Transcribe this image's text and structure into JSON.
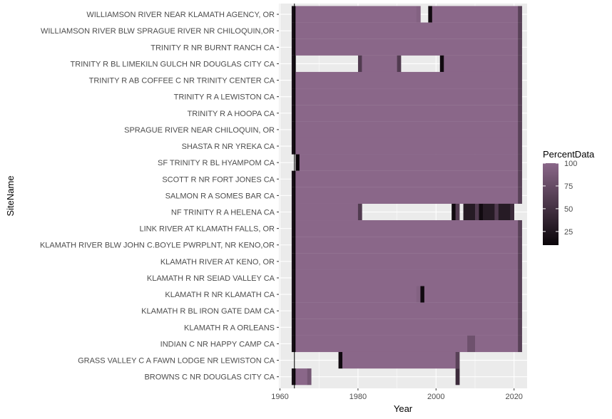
{
  "chart_data": {
    "type": "heatmap",
    "xlabel": "Year",
    "ylabel": "SiteName",
    "xlim": [
      1960,
      2025
    ],
    "x_ticks": [
      1960,
      1980,
      2000,
      2020
    ],
    "x_tick_labels": [
      "1960",
      "1980",
      "2000",
      "2020"
    ],
    "legend_title": "PercentData",
    "legend_placement": "right",
    "legend_ticks": [
      100,
      75,
      50,
      25
    ],
    "legend_tick_labels": [
      "100",
      "75",
      "50",
      "25"
    ],
    "color_range": [
      10,
      100
    ],
    "colors": {
      "low": "#0a0509",
      "high": "#8a6789",
      "panel": "#ebebeb",
      "grid": "#ffffff"
    },
    "grid": true,
    "reference_line_year": 1963.7,
    "sites": [
      "WILLIAMSON RIVER NEAR KLAMATH AGENCY, OR",
      "WILLIAMSON RIVER BLW SPRAGUE RIVER NR CHILOQUIN,OR",
      "TRINITY R NR BURNT RANCH CA",
      "TRINITY R BL LIMEKILN GULCH NR DOUGLAS CITY CA",
      "TRINITY R AB COFFEE C NR TRINITY CENTER CA",
      "TRINITY R A LEWISTON CA",
      "TRINITY R A HOOPA CA",
      "SPRAGUE RIVER NEAR CHILOQUIN, OR",
      "SHASTA R NR YREKA CA",
      "SF TRINITY R BL HYAMPOM CA",
      "SCOTT R NR FORT JONES CA",
      "SALMON R A SOMES BAR CA",
      "NF TRINITY R A HELENA CA",
      "LINK RIVER AT KLAMATH FALLS, OR",
      "KLAMATH RIVER BLW JOHN C.BOYLE PWRPLNT, NR KENO,OR",
      "KLAMATH RIVER AT KENO, OR",
      "KLAMATH R NR SEIAD VALLEY CA",
      "KLAMATH R NR KLAMATH CA",
      "KLAMATH R BL IRON GATE DAM CA",
      "KLAMATH R A ORLEANS",
      "INDIAN C NR HAPPY CAMP CA",
      "GRASS VALLEY C A FAWN LODGE NR LEWISTON CA",
      "BROWNS C NR DOUGLAS CITY CA"
    ],
    "segments": [
      {
        "site": "WILLIAMSON RIVER NEAR KLAMATH AGENCY, OR",
        "start": 1963,
        "end": 1964,
        "percent": 20
      },
      {
        "site": "WILLIAMSON RIVER NEAR KLAMATH AGENCY, OR",
        "start": 1964,
        "end": 1995,
        "percent": 100
      },
      {
        "site": "WILLIAMSON RIVER NEAR KLAMATH AGENCY, OR",
        "start": 1995,
        "end": 1996,
        "percent": 95
      },
      {
        "site": "WILLIAMSON RIVER NEAR KLAMATH AGENCY, OR",
        "start": 1998,
        "end": 1999,
        "percent": 15
      },
      {
        "site": "WILLIAMSON RIVER NEAR KLAMATH AGENCY, OR",
        "start": 1999,
        "end": 2021,
        "percent": 100
      },
      {
        "site": "WILLIAMSON RIVER NEAR KLAMATH AGENCY, OR",
        "start": 2021,
        "end": 2022,
        "percent": 65
      },
      {
        "site": "WILLIAMSON RIVER BLW SPRAGUE RIVER NR CHILOQUIN,OR",
        "start": 1963,
        "end": 1964,
        "percent": 20
      },
      {
        "site": "WILLIAMSON RIVER BLW SPRAGUE RIVER NR CHILOQUIN,OR",
        "start": 1964,
        "end": 2021,
        "percent": 100
      },
      {
        "site": "WILLIAMSON RIVER BLW SPRAGUE RIVER NR CHILOQUIN,OR",
        "start": 2021,
        "end": 2022,
        "percent": 65
      },
      {
        "site": "TRINITY R NR BURNT RANCH CA",
        "start": 1963,
        "end": 1964,
        "percent": 20
      },
      {
        "site": "TRINITY R NR BURNT RANCH CA",
        "start": 1964,
        "end": 2021,
        "percent": 100
      },
      {
        "site": "TRINITY R NR BURNT RANCH CA",
        "start": 2021,
        "end": 2022,
        "percent": 65
      },
      {
        "site": "TRINITY R BL LIMEKILN GULCH NR DOUGLAS CITY CA",
        "start": 1963,
        "end": 1964,
        "percent": 20
      },
      {
        "site": "TRINITY R BL LIMEKILN GULCH NR DOUGLAS CITY CA",
        "start": 1980,
        "end": 1981,
        "percent": 60
      },
      {
        "site": "TRINITY R BL LIMEKILN GULCH NR DOUGLAS CITY CA",
        "start": 1981,
        "end": 1990,
        "percent": 100
      },
      {
        "site": "TRINITY R BL LIMEKILN GULCH NR DOUGLAS CITY CA",
        "start": 1990,
        "end": 1991,
        "percent": 60
      },
      {
        "site": "TRINITY R BL LIMEKILN GULCH NR DOUGLAS CITY CA",
        "start": 2001,
        "end": 2002,
        "percent": 15
      },
      {
        "site": "TRINITY R BL LIMEKILN GULCH NR DOUGLAS CITY CA",
        "start": 2002,
        "end": 2021,
        "percent": 100
      },
      {
        "site": "TRINITY R BL LIMEKILN GULCH NR DOUGLAS CITY CA",
        "start": 2021,
        "end": 2022,
        "percent": 65
      },
      {
        "site": "TRINITY R AB COFFEE C NR TRINITY CENTER CA",
        "start": 1963,
        "end": 1964,
        "percent": 20
      },
      {
        "site": "TRINITY R AB COFFEE C NR TRINITY CENTER CA",
        "start": 1964,
        "end": 2021,
        "percent": 100
      },
      {
        "site": "TRINITY R AB COFFEE C NR TRINITY CENTER CA",
        "start": 2021,
        "end": 2022,
        "percent": 65
      },
      {
        "site": "TRINITY R A LEWISTON CA",
        "start": 1963,
        "end": 1964,
        "percent": 20
      },
      {
        "site": "TRINITY R A LEWISTON CA",
        "start": 1964,
        "end": 2021,
        "percent": 100
      },
      {
        "site": "TRINITY R A LEWISTON CA",
        "start": 2021,
        "end": 2022,
        "percent": 65
      },
      {
        "site": "TRINITY R A HOOPA CA",
        "start": 1963,
        "end": 1964,
        "percent": 20
      },
      {
        "site": "TRINITY R A HOOPA CA",
        "start": 1964,
        "end": 2021,
        "percent": 100
      },
      {
        "site": "TRINITY R A HOOPA CA",
        "start": 2021,
        "end": 2022,
        "percent": 65
      },
      {
        "site": "SPRAGUE RIVER NEAR CHILOQUIN, OR",
        "start": 1963,
        "end": 1964,
        "percent": 20
      },
      {
        "site": "SPRAGUE RIVER NEAR CHILOQUIN, OR",
        "start": 1964,
        "end": 2021,
        "percent": 100
      },
      {
        "site": "SPRAGUE RIVER NEAR CHILOQUIN, OR",
        "start": 2021,
        "end": 2022,
        "percent": 65
      },
      {
        "site": "SHASTA R NR YREKA CA",
        "start": 1963,
        "end": 1964,
        "percent": 20
      },
      {
        "site": "SHASTA R NR YREKA CA",
        "start": 1964,
        "end": 2021,
        "percent": 100
      },
      {
        "site": "SHASTA R NR YREKA CA",
        "start": 2021,
        "end": 2022,
        "percent": 65
      },
      {
        "site": "SF TRINITY R BL HYAMPOM CA",
        "start": 1964,
        "end": 1965,
        "percent": 10
      },
      {
        "site": "SF TRINITY R BL HYAMPOM CA",
        "start": 1965,
        "end": 2021,
        "percent": 100
      },
      {
        "site": "SF TRINITY R BL HYAMPOM CA",
        "start": 2021,
        "end": 2022,
        "percent": 65
      },
      {
        "site": "SCOTT R NR FORT JONES CA",
        "start": 1963,
        "end": 1964,
        "percent": 20
      },
      {
        "site": "SCOTT R NR FORT JONES CA",
        "start": 1964,
        "end": 2021,
        "percent": 100
      },
      {
        "site": "SCOTT R NR FORT JONES CA",
        "start": 2021,
        "end": 2022,
        "percent": 65
      },
      {
        "site": "SALMON R A SOMES BAR CA",
        "start": 1963,
        "end": 1964,
        "percent": 20
      },
      {
        "site": "SALMON R A SOMES BAR CA",
        "start": 1964,
        "end": 2021,
        "percent": 100
      },
      {
        "site": "SALMON R A SOMES BAR CA",
        "start": 2021,
        "end": 2022,
        "percent": 65
      },
      {
        "site": "NF TRINITY R A HELENA CA",
        "start": 1963,
        "end": 1964,
        "percent": 20
      },
      {
        "site": "NF TRINITY R A HELENA CA",
        "start": 1964,
        "end": 1980,
        "percent": 100
      },
      {
        "site": "NF TRINITY R A HELENA CA",
        "start": 1980,
        "end": 1981,
        "percent": 60
      },
      {
        "site": "NF TRINITY R A HELENA CA",
        "start": 2004,
        "end": 2005,
        "percent": 15
      },
      {
        "site": "NF TRINITY R A HELENA CA",
        "start": 2005,
        "end": 2006,
        "percent": 60
      },
      {
        "site": "NF TRINITY R A HELENA CA",
        "start": 2007,
        "end": 2010,
        "percent": 30
      },
      {
        "site": "NF TRINITY R A HELENA CA",
        "start": 2010,
        "end": 2011,
        "percent": 60
      },
      {
        "site": "NF TRINITY R A HELENA CA",
        "start": 2011,
        "end": 2012,
        "percent": 15
      },
      {
        "site": "NF TRINITY R A HELENA CA",
        "start": 2012,
        "end": 2015,
        "percent": 30
      },
      {
        "site": "NF TRINITY R A HELENA CA",
        "start": 2015,
        "end": 2016,
        "percent": 60
      },
      {
        "site": "NF TRINITY R A HELENA CA",
        "start": 2016,
        "end": 2019,
        "percent": 30
      },
      {
        "site": "NF TRINITY R A HELENA CA",
        "start": 2019,
        "end": 2020,
        "percent": 45
      },
      {
        "site": "LINK RIVER AT KLAMATH FALLS, OR",
        "start": 1963,
        "end": 1964,
        "percent": 20
      },
      {
        "site": "LINK RIVER AT KLAMATH FALLS, OR",
        "start": 1964,
        "end": 2021,
        "percent": 100
      },
      {
        "site": "LINK RIVER AT KLAMATH FALLS, OR",
        "start": 2021,
        "end": 2022,
        "percent": 65
      },
      {
        "site": "KLAMATH RIVER BLW JOHN C.BOYLE PWRPLNT, NR KENO,OR",
        "start": 1963,
        "end": 1964,
        "percent": 20
      },
      {
        "site": "KLAMATH RIVER BLW JOHN C.BOYLE PWRPLNT, NR KENO,OR",
        "start": 1964,
        "end": 2021,
        "percent": 100
      },
      {
        "site": "KLAMATH RIVER BLW JOHN C.BOYLE PWRPLNT, NR KENO,OR",
        "start": 2021,
        "end": 2022,
        "percent": 65
      },
      {
        "site": "KLAMATH RIVER AT KENO, OR",
        "start": 1963,
        "end": 1964,
        "percent": 20
      },
      {
        "site": "KLAMATH RIVER AT KENO, OR",
        "start": 1964,
        "end": 2021,
        "percent": 100
      },
      {
        "site": "KLAMATH RIVER AT KENO, OR",
        "start": 2021,
        "end": 2022,
        "percent": 65
      },
      {
        "site": "KLAMATH R NR SEIAD VALLEY CA",
        "start": 1963,
        "end": 1964,
        "percent": 20
      },
      {
        "site": "KLAMATH R NR SEIAD VALLEY CA",
        "start": 1964,
        "end": 2021,
        "percent": 100
      },
      {
        "site": "KLAMATH R NR SEIAD VALLEY CA",
        "start": 2021,
        "end": 2022,
        "percent": 65
      },
      {
        "site": "KLAMATH R NR KLAMATH CA",
        "start": 1963,
        "end": 1964,
        "percent": 20
      },
      {
        "site": "KLAMATH R NR KLAMATH CA",
        "start": 1964,
        "end": 1995,
        "percent": 100
      },
      {
        "site": "KLAMATH R NR KLAMATH CA",
        "start": 1995,
        "end": 1996,
        "percent": 95
      },
      {
        "site": "KLAMATH R NR KLAMATH CA",
        "start": 1996,
        "end": 1997,
        "percent": 15
      },
      {
        "site": "KLAMATH R NR KLAMATH CA",
        "start": 1997,
        "end": 2021,
        "percent": 100
      },
      {
        "site": "KLAMATH R NR KLAMATH CA",
        "start": 2021,
        "end": 2022,
        "percent": 65
      },
      {
        "site": "KLAMATH R BL IRON GATE DAM CA",
        "start": 1963,
        "end": 1964,
        "percent": 20
      },
      {
        "site": "KLAMATH R BL IRON GATE DAM CA",
        "start": 1964,
        "end": 2021,
        "percent": 100
      },
      {
        "site": "KLAMATH R BL IRON GATE DAM CA",
        "start": 2021,
        "end": 2022,
        "percent": 65
      },
      {
        "site": "KLAMATH R A ORLEANS",
        "start": 1963,
        "end": 1964,
        "percent": 20
      },
      {
        "site": "KLAMATH R A ORLEANS",
        "start": 1964,
        "end": 2021,
        "percent": 100
      },
      {
        "site": "KLAMATH R A ORLEANS",
        "start": 2021,
        "end": 2022,
        "percent": 65
      },
      {
        "site": "INDIAN C NR HAPPY CAMP CA",
        "start": 1963,
        "end": 1964,
        "percent": 20
      },
      {
        "site": "INDIAN C NR HAPPY CAMP CA",
        "start": 1964,
        "end": 2008,
        "percent": 100
      },
      {
        "site": "INDIAN C NR HAPPY CAMP CA",
        "start": 2008,
        "end": 2010,
        "percent": 80
      },
      {
        "site": "INDIAN C NR HAPPY CAMP CA",
        "start": 2010,
        "end": 2021,
        "percent": 100
      },
      {
        "site": "INDIAN C NR HAPPY CAMP CA",
        "start": 2021,
        "end": 2022,
        "percent": 65
      },
      {
        "site": "GRASS VALLEY C A FAWN LODGE NR LEWISTON CA",
        "start": 1975,
        "end": 1976,
        "percent": 15
      },
      {
        "site": "GRASS VALLEY C A FAWN LODGE NR LEWISTON CA",
        "start": 1976,
        "end": 2005,
        "percent": 100
      },
      {
        "site": "GRASS VALLEY C A FAWN LODGE NR LEWISTON CA",
        "start": 2005,
        "end": 2006,
        "percent": 65
      },
      {
        "site": "BROWNS C NR DOUGLAS CITY CA",
        "start": 1963,
        "end": 1964,
        "percent": 20
      },
      {
        "site": "BROWNS C NR DOUGLAS CITY CA",
        "start": 1964,
        "end": 1967,
        "percent": 100
      },
      {
        "site": "BROWNS C NR DOUGLAS CITY CA",
        "start": 1967,
        "end": 1968,
        "percent": 85
      },
      {
        "site": "BROWNS C NR DOUGLAS CITY CA",
        "start": 2005,
        "end": 2006,
        "percent": 45
      }
    ]
  }
}
